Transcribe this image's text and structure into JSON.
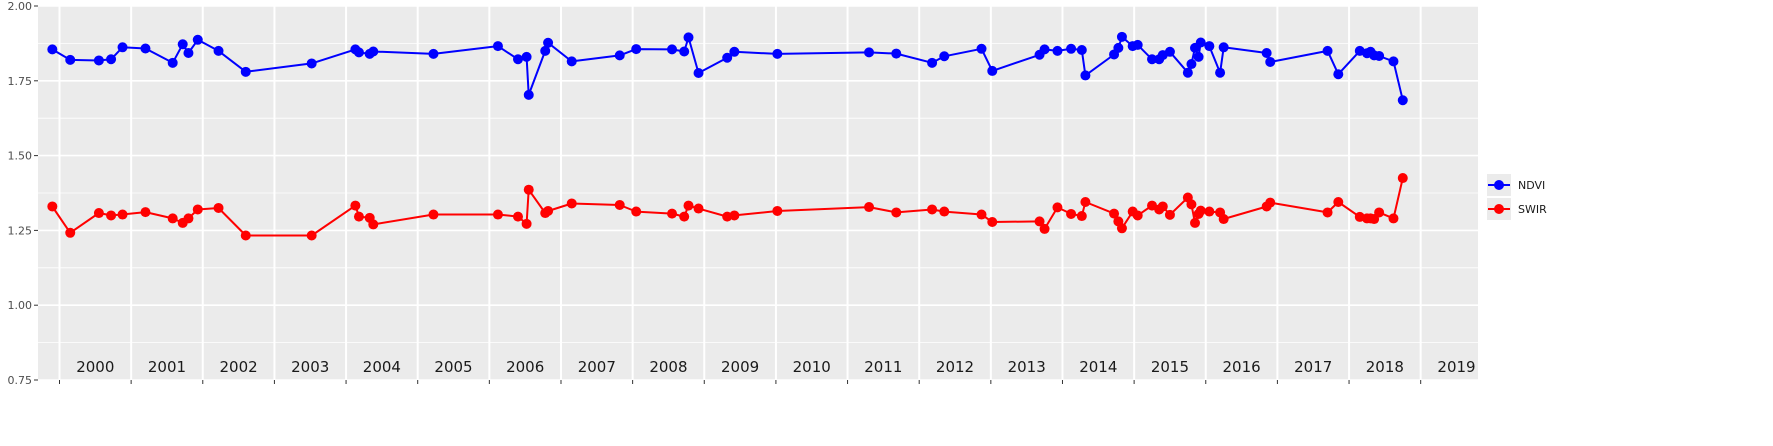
{
  "chart_data": {
    "type": "line",
    "title": "",
    "xlabel": "",
    "ylabel": "",
    "ylim": [
      0.75,
      2.0
    ],
    "y_ticks": [
      "0.75",
      "1.00",
      "1.25",
      "1.50",
      "1.75",
      "2.00"
    ],
    "year_labels": [
      "2000",
      "2001",
      "2002",
      "2003",
      "2004",
      "2005",
      "2006",
      "2007",
      "2008",
      "2009",
      "2010",
      "2011",
      "2012",
      "2013",
      "2014",
      "2015",
      "2016",
      "2017",
      "2018",
      "2019"
    ],
    "x_axis_units": "year index (0 = start of 2000)",
    "x_range": [
      -0.3,
      19.8
    ],
    "grid": true,
    "background": "#ebebeb",
    "legend_position": "right",
    "series": [
      {
        "name": "NDVI",
        "color": "#0000ff",
        "points": [
          [
            -0.1,
            1.855
          ],
          [
            0.15,
            1.82
          ],
          [
            0.55,
            1.818
          ],
          [
            0.72,
            1.822
          ],
          [
            0.88,
            1.862
          ],
          [
            1.2,
            1.858
          ],
          [
            1.58,
            1.81
          ],
          [
            1.72,
            1.872
          ],
          [
            1.8,
            1.843
          ],
          [
            1.93,
            1.887
          ],
          [
            2.22,
            1.85
          ],
          [
            2.6,
            1.78
          ],
          [
            3.52,
            1.808
          ],
          [
            4.13,
            1.855
          ],
          [
            4.18,
            1.845
          ],
          [
            4.33,
            1.84
          ],
          [
            4.38,
            1.848
          ],
          [
            5.22,
            1.84
          ],
          [
            6.12,
            1.866
          ],
          [
            6.4,
            1.822
          ],
          [
            6.52,
            1.83
          ],
          [
            6.55,
            1.703
          ],
          [
            6.78,
            1.85
          ],
          [
            6.82,
            1.877
          ],
          [
            7.15,
            1.815
          ],
          [
            7.82,
            1.835
          ],
          [
            8.05,
            1.856
          ],
          [
            8.55,
            1.855
          ],
          [
            8.72,
            1.848
          ],
          [
            8.78,
            1.895
          ],
          [
            8.92,
            1.776
          ],
          [
            9.32,
            1.827
          ],
          [
            9.42,
            1.847
          ],
          [
            10.02,
            1.84
          ],
          [
            11.3,
            1.845
          ],
          [
            11.68,
            1.841
          ],
          [
            12.18,
            1.81
          ],
          [
            12.35,
            1.832
          ],
          [
            12.87,
            1.857
          ],
          [
            13.02,
            1.783
          ],
          [
            13.68,
            1.837
          ],
          [
            13.75,
            1.855
          ],
          [
            13.93,
            1.85
          ],
          [
            14.12,
            1.857
          ],
          [
            14.27,
            1.853
          ],
          [
            14.32,
            1.768
          ],
          [
            14.72,
            1.838
          ],
          [
            14.78,
            1.86
          ],
          [
            14.83,
            1.897
          ],
          [
            14.98,
            1.866
          ],
          [
            15.05,
            1.87
          ],
          [
            15.25,
            1.822
          ],
          [
            15.35,
            1.822
          ],
          [
            15.4,
            1.836
          ],
          [
            15.5,
            1.847
          ],
          [
            15.75,
            1.777
          ],
          [
            15.8,
            1.806
          ],
          [
            15.85,
            1.86
          ],
          [
            15.9,
            1.83
          ],
          [
            15.93,
            1.878
          ],
          [
            16.05,
            1.866
          ],
          [
            16.2,
            1.777
          ],
          [
            16.25,
            1.862
          ],
          [
            16.85,
            1.843
          ],
          [
            16.9,
            1.813
          ],
          [
            17.7,
            1.85
          ],
          [
            17.85,
            1.772
          ],
          [
            18.15,
            1.85
          ],
          [
            18.25,
            1.842
          ],
          [
            18.3,
            1.847
          ],
          [
            18.35,
            1.835
          ],
          [
            18.42,
            1.833
          ],
          [
            18.62,
            1.815
          ],
          [
            18.75,
            1.685
          ]
        ]
      },
      {
        "name": "SWIR",
        "color": "#ff0000",
        "points": [
          [
            -0.1,
            1.33
          ],
          [
            0.15,
            1.242
          ],
          [
            0.55,
            1.308
          ],
          [
            0.72,
            1.3
          ],
          [
            0.88,
            1.303
          ],
          [
            1.2,
            1.311
          ],
          [
            1.58,
            1.29
          ],
          [
            1.72,
            1.275
          ],
          [
            1.8,
            1.29
          ],
          [
            1.93,
            1.32
          ],
          [
            2.22,
            1.325
          ],
          [
            2.6,
            1.233
          ],
          [
            3.52,
            1.233
          ],
          [
            4.13,
            1.333
          ],
          [
            4.18,
            1.296
          ],
          [
            4.33,
            1.292
          ],
          [
            4.38,
            1.27
          ],
          [
            5.22,
            1.303
          ],
          [
            6.12,
            1.303
          ],
          [
            6.4,
            1.296
          ],
          [
            6.52,
            1.272
          ],
          [
            6.55,
            1.386
          ],
          [
            6.78,
            1.308
          ],
          [
            6.82,
            1.315
          ],
          [
            7.15,
            1.34
          ],
          [
            7.82,
            1.335
          ],
          [
            8.05,
            1.313
          ],
          [
            8.55,
            1.306
          ],
          [
            8.72,
            1.296
          ],
          [
            8.78,
            1.333
          ],
          [
            8.92,
            1.323
          ],
          [
            9.32,
            1.296
          ],
          [
            9.42,
            1.3
          ],
          [
            10.02,
            1.315
          ],
          [
            11.3,
            1.328
          ],
          [
            11.68,
            1.31
          ],
          [
            12.18,
            1.32
          ],
          [
            12.35,
            1.313
          ],
          [
            12.87,
            1.303
          ],
          [
            13.02,
            1.278
          ],
          [
            13.68,
            1.28
          ],
          [
            13.75,
            1.255
          ],
          [
            13.93,
            1.327
          ],
          [
            14.12,
            1.305
          ],
          [
            14.27,
            1.298
          ],
          [
            14.32,
            1.345
          ],
          [
            14.72,
            1.306
          ],
          [
            14.78,
            1.28
          ],
          [
            14.83,
            1.257
          ],
          [
            14.98,
            1.313
          ],
          [
            15.05,
            1.3
          ],
          [
            15.25,
            1.333
          ],
          [
            15.35,
            1.32
          ],
          [
            15.4,
            1.33
          ],
          [
            15.5,
            1.302
          ],
          [
            15.75,
            1.36
          ],
          [
            15.8,
            1.337
          ],
          [
            15.85,
            1.275
          ],
          [
            15.9,
            1.305
          ],
          [
            15.93,
            1.316
          ],
          [
            16.05,
            1.313
          ],
          [
            16.2,
            1.31
          ],
          [
            16.25,
            1.288
          ],
          [
            16.85,
            1.33
          ],
          [
            16.9,
            1.343
          ],
          [
            17.7,
            1.31
          ],
          [
            17.85,
            1.345
          ],
          [
            18.15,
            1.295
          ],
          [
            18.25,
            1.29
          ],
          [
            18.3,
            1.29
          ],
          [
            18.35,
            1.288
          ],
          [
            18.42,
            1.31
          ],
          [
            18.62,
            1.29
          ],
          [
            18.75,
            1.425
          ]
        ]
      }
    ]
  }
}
